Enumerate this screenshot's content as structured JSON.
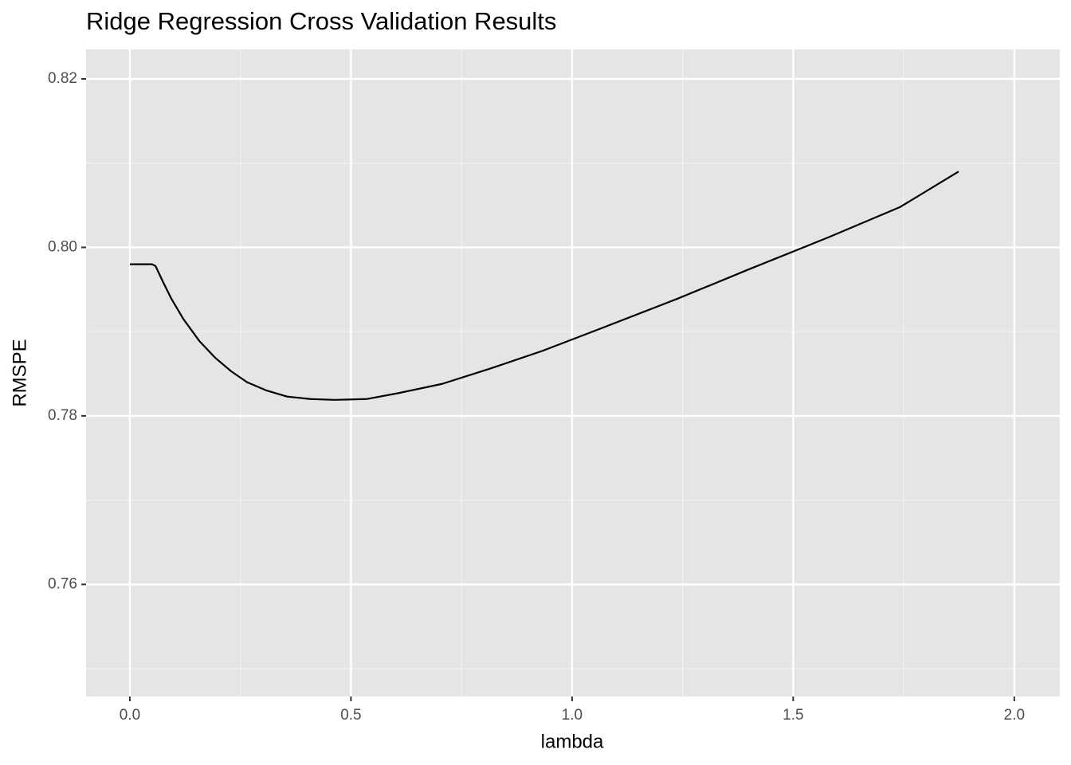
{
  "chart_data": {
    "type": "line",
    "title": "Ridge Regression Cross Validation Results",
    "x_label": "lambda",
    "y_label": "RMSPE",
    "x": [
      0,
      0.05,
      0.058,
      0.076,
      0.094,
      0.121,
      0.157,
      0.193,
      0.229,
      0.265,
      0.31,
      0.355,
      0.409,
      0.463,
      0.535,
      0.607,
      0.706,
      0.814,
      0.932,
      1.076,
      1.238,
      1.4,
      1.58,
      1.742,
      1.874
    ],
    "series": [
      {
        "name": "RMSPE",
        "color": "#000000",
        "values": [
          0.798,
          0.798,
          0.7978,
          0.7958,
          0.7939,
          0.7915,
          0.7889,
          0.7869,
          0.7853,
          0.784,
          0.783,
          0.7823,
          0.782,
          0.7819,
          0.782,
          0.7827,
          0.7838,
          0.7856,
          0.7877,
          0.7906,
          0.7939,
          0.7974,
          0.8012,
          0.8048,
          0.809
        ]
      }
    ],
    "xlim": [
      -0.099,
      2.103
    ],
    "ylim": [
      0.7467,
      0.8235
    ],
    "xticks": [
      {
        "value": 0,
        "label": "0.0"
      },
      0.5,
      {
        "value": 1,
        "label": "1.0"
      },
      1.5,
      {
        "value": 2,
        "label": "2.0"
      }
    ],
    "yticks": [
      0.76,
      0.78,
      {
        "value": 0.8,
        "label": "0.80"
      },
      0.82
    ],
    "grid": true
  }
}
